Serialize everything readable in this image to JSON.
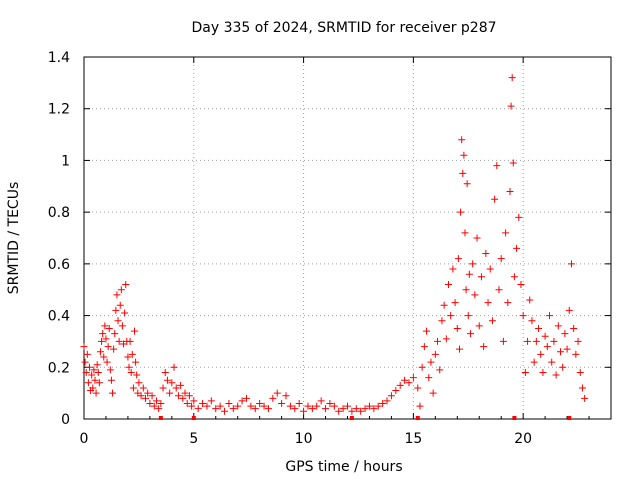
{
  "chart_data": {
    "type": "scatter",
    "title": "Day 335 of 2024, SRMTID for receiver p287",
    "xlabel": "GPS time / hours",
    "ylabel": "SRMTID / TECUs",
    "xlim": [
      0,
      24
    ],
    "ylim": [
      0,
      1.4
    ],
    "x_ticks": [
      0,
      5,
      10,
      15,
      20
    ],
    "x_tick_labels": [
      "0",
      "5",
      "10",
      "15",
      "20"
    ],
    "y_ticks": [
      0,
      0.2,
      0.4,
      0.6,
      0.8,
      1.0,
      1.2,
      1.4
    ],
    "y_tick_labels": [
      "0",
      "0.2",
      "0.4",
      "0.6",
      "0.8",
      "1",
      "1.2",
      "1.4"
    ],
    "grid": true,
    "marker": "+",
    "color": "#ff0000",
    "series": [
      {
        "name": "SRMTID",
        "points": [
          [
            0.0,
            0.28
          ],
          [
            0.05,
            0.22
          ],
          [
            0.1,
            0.18
          ],
          [
            0.15,
            0.25
          ],
          [
            0.2,
            0.14
          ],
          [
            0.25,
            0.2
          ],
          [
            0.3,
            0.11
          ],
          [
            0.35,
            0.17
          ],
          [
            0.4,
            0.12
          ],
          [
            0.45,
            0.19
          ],
          [
            0.5,
            0.15
          ],
          [
            0.55,
            0.1
          ],
          [
            0.6,
            0.21
          ],
          [
            0.65,
            0.18
          ],
          [
            0.7,
            0.14
          ],
          [
            0.75,
            0.26
          ],
          [
            0.8,
            0.3
          ],
          [
            0.85,
            0.33
          ],
          [
            0.9,
            0.24
          ],
          [
            0.95,
            0.36
          ],
          [
            1.0,
            0.31
          ],
          [
            1.05,
            0.22
          ],
          [
            1.1,
            0.28
          ],
          [
            1.15,
            0.35
          ],
          [
            1.2,
            0.19
          ],
          [
            1.25,
            0.15
          ],
          [
            1.3,
            0.1
          ],
          [
            1.35,
            0.27
          ],
          [
            1.4,
            0.33
          ],
          [
            1.45,
            0.42
          ],
          [
            1.5,
            0.48
          ],
          [
            1.55,
            0.38
          ],
          [
            1.6,
            0.3
          ],
          [
            1.65,
            0.44
          ],
          [
            1.7,
            0.5
          ],
          [
            1.75,
            0.36
          ],
          [
            1.8,
            0.29
          ],
          [
            1.85,
            0.41
          ],
          [
            1.9,
            0.52
          ],
          [
            1.95,
            0.3
          ],
          [
            2.0,
            0.24
          ],
          [
            2.05,
            0.2
          ],
          [
            2.1,
            0.3
          ],
          [
            2.15,
            0.18
          ],
          [
            2.2,
            0.25
          ],
          [
            2.25,
            0.12
          ],
          [
            2.3,
            0.34
          ],
          [
            2.35,
            0.22
          ],
          [
            2.4,
            0.17
          ],
          [
            2.45,
            0.1
          ],
          [
            2.5,
            0.14
          ],
          [
            2.6,
            0.09
          ],
          [
            2.7,
            0.12
          ],
          [
            2.8,
            0.08
          ],
          [
            2.9,
            0.1
          ],
          [
            3.0,
            0.06
          ],
          [
            3.1,
            0.09
          ],
          [
            3.2,
            0.05
          ],
          [
            3.3,
            0.07
          ],
          [
            3.4,
            0.04
          ],
          [
            3.5,
            0.06
          ],
          [
            3.6,
            0.12
          ],
          [
            3.7,
            0.18
          ],
          [
            3.8,
            0.15
          ],
          [
            3.9,
            0.1
          ],
          [
            4.0,
            0.14
          ],
          [
            4.1,
            0.2
          ],
          [
            4.2,
            0.12
          ],
          [
            4.3,
            0.09
          ],
          [
            4.4,
            0.13
          ],
          [
            4.5,
            0.08
          ],
          [
            4.6,
            0.1
          ],
          [
            4.7,
            0.06
          ],
          [
            4.8,
            0.09
          ],
          [
            4.9,
            0.05
          ],
          [
            5.0,
            0.07
          ],
          [
            5.2,
            0.04
          ],
          [
            5.4,
            0.06
          ],
          [
            5.6,
            0.05
          ],
          [
            5.8,
            0.07
          ],
          [
            6.0,
            0.04
          ],
          [
            6.2,
            0.05
          ],
          [
            6.4,
            0.03
          ],
          [
            6.6,
            0.06
          ],
          [
            6.8,
            0.04
          ],
          [
            7.0,
            0.05
          ],
          [
            7.2,
            0.07
          ],
          [
            7.4,
            0.08
          ],
          [
            7.6,
            0.05
          ],
          [
            7.8,
            0.04
          ],
          [
            8.0,
            0.06
          ],
          [
            8.2,
            0.05
          ],
          [
            8.4,
            0.04
          ],
          [
            8.6,
            0.08
          ],
          [
            8.8,
            0.1
          ],
          [
            9.0,
            0.06
          ],
          [
            9.2,
            0.09
          ],
          [
            9.4,
            0.05
          ],
          [
            9.6,
            0.04
          ],
          [
            9.8,
            0.06
          ],
          [
            10.0,
            0.03
          ],
          [
            10.2,
            0.05
          ],
          [
            10.4,
            0.04
          ],
          [
            10.6,
            0.05
          ],
          [
            10.8,
            0.07
          ],
          [
            11.0,
            0.04
          ],
          [
            11.2,
            0.06
          ],
          [
            11.4,
            0.05
          ],
          [
            11.6,
            0.03
          ],
          [
            11.8,
            0.04
          ],
          [
            12.0,
            0.05
          ],
          [
            12.2,
            0.03
          ],
          [
            12.4,
            0.04
          ],
          [
            12.6,
            0.03
          ],
          [
            12.8,
            0.04
          ],
          [
            13.0,
            0.05
          ],
          [
            13.2,
            0.04
          ],
          [
            13.4,
            0.05
          ],
          [
            13.6,
            0.06
          ],
          [
            13.8,
            0.07
          ],
          [
            14.0,
            0.09
          ],
          [
            14.2,
            0.11
          ],
          [
            14.4,
            0.13
          ],
          [
            14.6,
            0.15
          ],
          [
            14.8,
            0.14
          ],
          [
            15.0,
            0.16
          ],
          [
            15.2,
            0.12
          ],
          [
            15.3,
            0.05
          ],
          [
            15.4,
            0.2
          ],
          [
            15.5,
            0.28
          ],
          [
            15.6,
            0.34
          ],
          [
            15.7,
            0.16
          ],
          [
            15.8,
            0.22
          ],
          [
            15.9,
            0.1
          ],
          [
            16.0,
            0.25
          ],
          [
            16.1,
            0.3
          ],
          [
            16.2,
            0.19
          ],
          [
            16.3,
            0.38
          ],
          [
            16.4,
            0.44
          ],
          [
            16.5,
            0.31
          ],
          [
            16.6,
            0.52
          ],
          [
            16.7,
            0.4
          ],
          [
            16.8,
            0.58
          ],
          [
            16.9,
            0.45
          ],
          [
            17.0,
            0.35
          ],
          [
            17.05,
            0.62
          ],
          [
            17.1,
            0.27
          ],
          [
            17.15,
            0.8
          ],
          [
            17.2,
            1.08
          ],
          [
            17.25,
            0.95
          ],
          [
            17.3,
            1.02
          ],
          [
            17.35,
            0.72
          ],
          [
            17.4,
            0.5
          ],
          [
            17.45,
            0.91
          ],
          [
            17.5,
            0.4
          ],
          [
            17.55,
            0.56
          ],
          [
            17.6,
            0.33
          ],
          [
            17.7,
            0.6
          ],
          [
            17.8,
            0.48
          ],
          [
            17.9,
            0.7
          ],
          [
            18.0,
            0.36
          ],
          [
            18.1,
            0.55
          ],
          [
            18.2,
            0.28
          ],
          [
            18.3,
            0.64
          ],
          [
            18.4,
            0.45
          ],
          [
            18.5,
            0.58
          ],
          [
            18.6,
            0.38
          ],
          [
            18.7,
            0.85
          ],
          [
            18.8,
            0.98
          ],
          [
            18.9,
            0.5
          ],
          [
            19.0,
            0.62
          ],
          [
            19.1,
            0.3
          ],
          [
            19.2,
            0.72
          ],
          [
            19.3,
            0.45
          ],
          [
            19.4,
            0.88
          ],
          [
            19.45,
            1.21
          ],
          [
            19.5,
            1.32
          ],
          [
            19.55,
            0.99
          ],
          [
            19.6,
            0.55
          ],
          [
            19.7,
            0.66
          ],
          [
            19.8,
            0.78
          ],
          [
            19.9,
            0.52
          ],
          [
            20.0,
            0.4
          ],
          [
            20.1,
            0.18
          ],
          [
            20.2,
            0.3
          ],
          [
            20.3,
            0.46
          ],
          [
            20.4,
            0.38
          ],
          [
            20.5,
            0.22
          ],
          [
            20.6,
            0.3
          ],
          [
            20.7,
            0.35
          ],
          [
            20.8,
            0.25
          ],
          [
            20.9,
            0.18
          ],
          [
            21.0,
            0.32
          ],
          [
            21.1,
            0.28
          ],
          [
            21.2,
            0.4
          ],
          [
            21.3,
            0.22
          ],
          [
            21.4,
            0.3
          ],
          [
            21.5,
            0.17
          ],
          [
            21.6,
            0.36
          ],
          [
            21.7,
            0.26
          ],
          [
            21.8,
            0.2
          ],
          [
            21.9,
            0.33
          ],
          [
            22.0,
            0.27
          ],
          [
            22.1,
            0.42
          ],
          [
            22.2,
            0.6
          ],
          [
            22.3,
            0.35
          ],
          [
            22.4,
            0.25
          ],
          [
            22.5,
            0.3
          ],
          [
            22.6,
            0.18
          ],
          [
            22.7,
            0.12
          ],
          [
            22.8,
            0.08
          ]
        ]
      }
    ],
    "baseline_markers_x": [
      3.5,
      5.0,
      12.2,
      15.2,
      19.6,
      22.1
    ]
  }
}
